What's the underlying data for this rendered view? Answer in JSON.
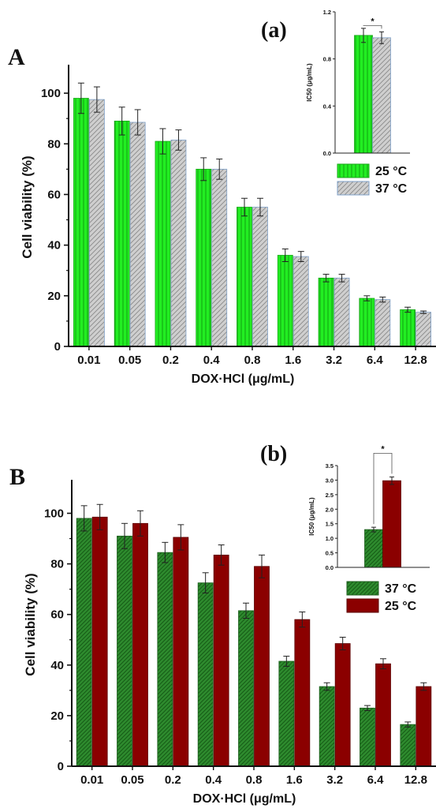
{
  "chart_data": [
    {
      "panel_label": "A",
      "type": "bar",
      "xlabel": "DOX·HCl (μg/mL)",
      "ylabel": "Cell viability (%)",
      "ylim": [
        0,
        110
      ],
      "yticks": [
        "0",
        "20",
        "40",
        "60",
        "80",
        "100"
      ],
      "categories": [
        "0.01",
        "0.05",
        "0.2",
        "0.4",
        "0.8",
        "1.6",
        "3.2",
        "6.4",
        "12.8"
      ],
      "legend_position": "top-right",
      "series": [
        {
          "name": "25 °C",
          "color": "#22ee22",
          "pattern": "vertical-stripes",
          "values": [
            98,
            89,
            81,
            70,
            55,
            36,
            27,
            19,
            14.5
          ],
          "errors": [
            6,
            5.5,
            5,
            4.5,
            3.5,
            2.5,
            1.5,
            1,
            1
          ]
        },
        {
          "name": "37 °C",
          "color": "#c8c8c8",
          "pattern": "diagonal-hatch",
          "values": [
            97.5,
            88.5,
            81.5,
            70,
            55,
            35.5,
            27,
            18.5,
            13.5
          ],
          "errors": [
            5,
            5,
            4,
            4,
            3.5,
            2,
            1.5,
            1,
            0.5
          ]
        }
      ],
      "inset": {
        "panel_label": "(a)",
        "type": "bar",
        "ylabel": "IC50 (μg/mL)",
        "ylim": [
          0,
          1.2
        ],
        "yticks": [
          "0.0",
          "0.4",
          "0.8",
          "1.2"
        ],
        "significance": "*",
        "series": [
          {
            "name": "25 °C",
            "value": 1.0,
            "error": 0.06
          },
          {
            "name": "37 °C",
            "value": 0.98,
            "error": 0.05
          }
        ]
      }
    },
    {
      "panel_label": "B",
      "type": "bar",
      "xlabel": "DOX·HCl (μg/mL)",
      "ylabel": "Cell viability (%)",
      "ylim": [
        0,
        112
      ],
      "yticks": [
        "0",
        "20",
        "40",
        "60",
        "80",
        "100"
      ],
      "categories": [
        "0.01",
        "0.05",
        "0.2",
        "0.4",
        "0.8",
        "1.6",
        "3.2",
        "6.4",
        "12.8"
      ],
      "legend_position": "top-right",
      "series": [
        {
          "name": "37 °C",
          "color": "#2e8b2e",
          "pattern": "diagonal-hatch",
          "values": [
            98,
            91,
            84.5,
            72.5,
            61.5,
            41.5,
            31.5,
            23,
            16.5
          ],
          "errors": [
            5,
            5,
            4,
            4,
            3,
            2,
            1.5,
            1,
            1
          ]
        },
        {
          "name": "25 °C",
          "color": "#8b0000",
          "pattern": "solid",
          "values": [
            98.5,
            96,
            90.5,
            83.5,
            79,
            58,
            48.5,
            40.5,
            31.5
          ],
          "errors": [
            5,
            5,
            5,
            4,
            4.5,
            3,
            2.5,
            2,
            1.5
          ]
        }
      ],
      "inset": {
        "panel_label": "(b)",
        "type": "bar",
        "ylabel": "IC50 (μg/mL)",
        "ylim": [
          0,
          3.5
        ],
        "yticks": [
          "0.0",
          "0.5",
          "1.0",
          "1.5",
          "2.0",
          "2.5",
          "3.0",
          "3.5"
        ],
        "significance": "*",
        "series": [
          {
            "name": "37 °C",
            "value": 1.3,
            "error": 0.08
          },
          {
            "name": "25 °C",
            "value": 2.98,
            "error": 0.13
          }
        ]
      }
    }
  ]
}
